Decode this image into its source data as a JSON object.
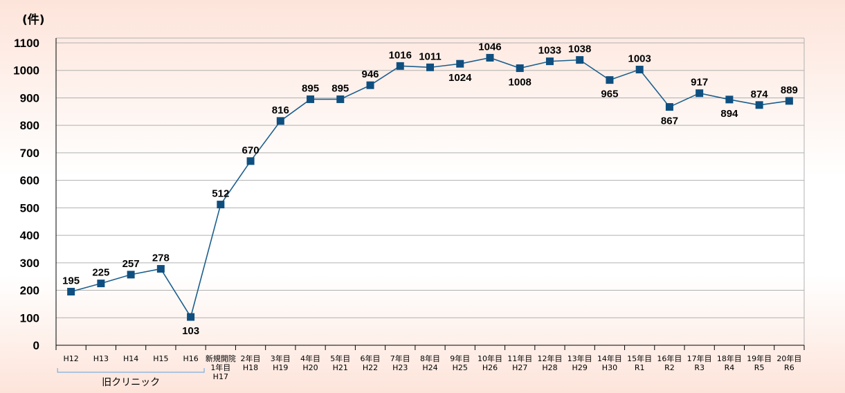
{
  "chart_data": {
    "type": "line",
    "unit_label": "(件)",
    "yticks": [
      "0",
      "100",
      "200",
      "300",
      "400",
      "500",
      "600",
      "700",
      "800",
      "900",
      "1000",
      "1100"
    ],
    "ylim": [
      0,
      1100
    ],
    "grid": true,
    "categories": [
      [
        "H12"
      ],
      [
        "H13"
      ],
      [
        "H14"
      ],
      [
        "H15"
      ],
      [
        "H16"
      ],
      [
        "新規開院",
        "1年目",
        "H17"
      ],
      [
        "2年目",
        "H18"
      ],
      [
        "3年目",
        "H19"
      ],
      [
        "4年目",
        "H20"
      ],
      [
        "5年目",
        "H21"
      ],
      [
        "6年目",
        "H22"
      ],
      [
        "7年目",
        "H23"
      ],
      [
        "8年目",
        "H24"
      ],
      [
        "9年目",
        "H25"
      ],
      [
        "10年目",
        "H26"
      ],
      [
        "11年目",
        "H27"
      ],
      [
        "12年目",
        "H28"
      ],
      [
        "13年目",
        "H29"
      ],
      [
        "14年目",
        "H30"
      ],
      [
        "15年目",
        "R1"
      ],
      [
        "16年目",
        "R2"
      ],
      [
        "17年目",
        "R3"
      ],
      [
        "18年目",
        "R4"
      ],
      [
        "19年目",
        "R5"
      ],
      [
        "20年目",
        "R6"
      ]
    ],
    "values": [
      195,
      225,
      257,
      278,
      103,
      512,
      670,
      816,
      895,
      895,
      946,
      1016,
      1011,
      1024,
      1046,
      1008,
      1033,
      1038,
      965,
      1003,
      867,
      917,
      894,
      874,
      889
    ],
    "label_below": [
      false,
      false,
      false,
      false,
      true,
      false,
      false,
      false,
      false,
      false,
      false,
      false,
      false,
      true,
      false,
      true,
      false,
      false,
      true,
      false,
      true,
      false,
      true,
      false,
      false
    ],
    "group_bracket": {
      "label": "旧クリニック",
      "from": 0,
      "to": 4
    },
    "colors": {
      "line": "#1b5e8c",
      "marker": "#0f4f80",
      "grid": "#b0b0b0",
      "bracket": "#7bb0dd"
    }
  }
}
